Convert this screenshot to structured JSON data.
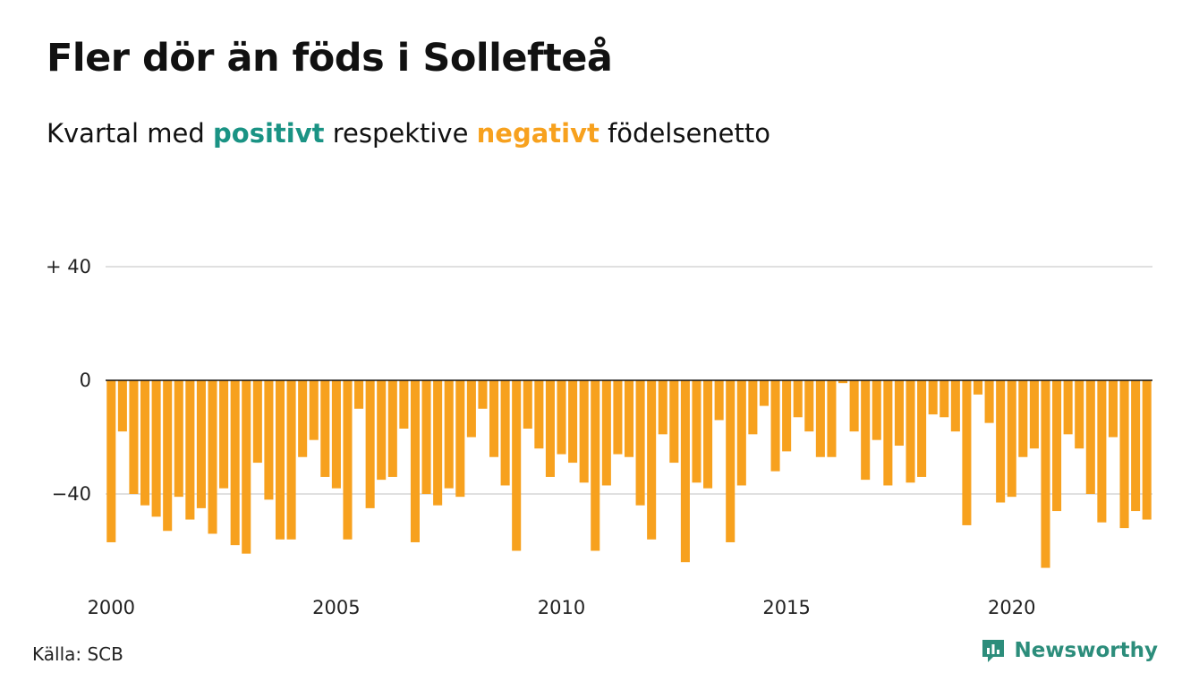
{
  "title": "Fler dör än föds i Sollefteå",
  "subtitle": {
    "prefix": "Kvartal med ",
    "positive": "positivt",
    "middle": " respektive ",
    "negative": "negativt",
    "suffix": " födelsenetto"
  },
  "colors": {
    "positive": "#1a9384",
    "negative": "#f7a11e",
    "grid": "#e0e0e0",
    "zero_line": "#111111",
    "brand": "#2c8d7b"
  },
  "source": "Källa: SCB",
  "brand": {
    "name": "Newsworthy",
    "icon": "newsworthy-bar-chart-icon"
  },
  "chart_data": {
    "type": "bar",
    "title": "Fler dör än föds i Sollefteå",
    "subtitle": "Kvartal med positivt respektive negativt födelsenetto",
    "xlabel": "",
    "ylabel": "",
    "x_start": {
      "year": 2000,
      "quarter": 1
    },
    "frequency": "quarterly",
    "ylim": [
      -66,
      40
    ],
    "y_ticks": [
      {
        "value": 40,
        "label": "+ 40"
      },
      {
        "value": 0,
        "label": "0"
      },
      {
        "value": -40,
        "label": "−40"
      }
    ],
    "x_ticks": [
      "2000",
      "2005",
      "2010",
      "2015",
      "2020"
    ],
    "grid": true,
    "legend": "none",
    "values": [
      -57,
      -18,
      -40,
      -44,
      -48,
      -53,
      -41,
      -49,
      -45,
      -54,
      -38,
      -58,
      -61,
      -29,
      -42,
      -56,
      -56,
      -27,
      -21,
      -34,
      -38,
      -56,
      -10,
      -45,
      -35,
      -34,
      -17,
      -57,
      -40,
      -44,
      -38,
      -41,
      -20,
      -10,
      -27,
      -37,
      -60,
      -17,
      -24,
      -34,
      -26,
      -29,
      -36,
      -60,
      -37,
      -26,
      -27,
      -44,
      -56,
      -19,
      -29,
      -64,
      -36,
      -38,
      -14,
      -57,
      -37,
      -19,
      -9,
      -32,
      -25,
      -13,
      -18,
      -27,
      -27,
      -1,
      -18,
      -35,
      -21,
      -37,
      -23,
      -36,
      -34,
      -12,
      -13,
      -18,
      -51,
      -5,
      -15,
      -43,
      -41,
      -27,
      -24,
      -66,
      -46,
      -19,
      -24,
      -40,
      -50,
      -20,
      -52,
      -46,
      -49
    ]
  }
}
